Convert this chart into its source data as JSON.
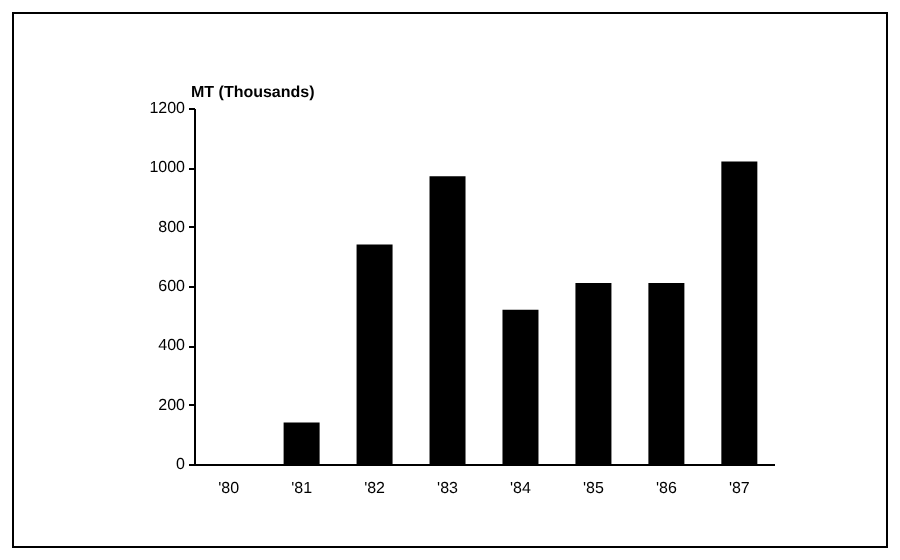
{
  "chart_data": {
    "type": "bar",
    "ylabel": "MT (Thousands)",
    "categories": [
      "'80",
      "'81",
      "'82",
      "'83",
      "'84",
      "'85",
      "'86",
      "'87"
    ],
    "values": [
      0,
      140,
      740,
      970,
      520,
      610,
      610,
      1020
    ],
    "color": "#000000",
    "ylim": [
      0,
      1200
    ],
    "yticks": [
      0,
      200,
      400,
      600,
      800,
      1000,
      1200
    ],
    "grid": false
  }
}
